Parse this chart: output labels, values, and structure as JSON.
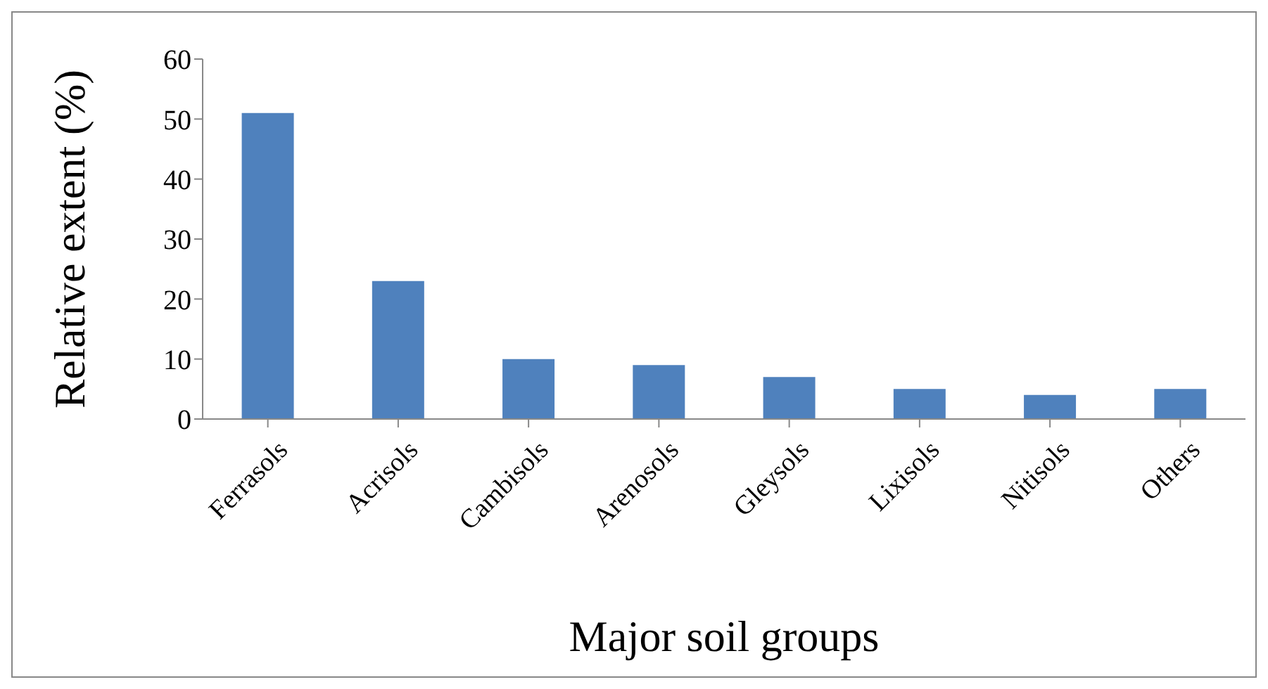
{
  "chart_data": {
    "type": "bar",
    "xlabel": "Major soil groups",
    "ylabel": "Relative extent (%)",
    "categories": [
      "Ferrasols",
      "Acrisols",
      "Cambisols",
      "Arenosols",
      "Gleysols",
      "Lixisols",
      "Nitisols",
      "Others"
    ],
    "values": [
      51,
      23,
      10,
      9,
      7,
      5,
      4,
      5
    ],
    "color": "#4f81bd",
    "ylim": [
      0,
      60
    ],
    "yticks": [
      0,
      10,
      20,
      30,
      40,
      50,
      60
    ]
  }
}
